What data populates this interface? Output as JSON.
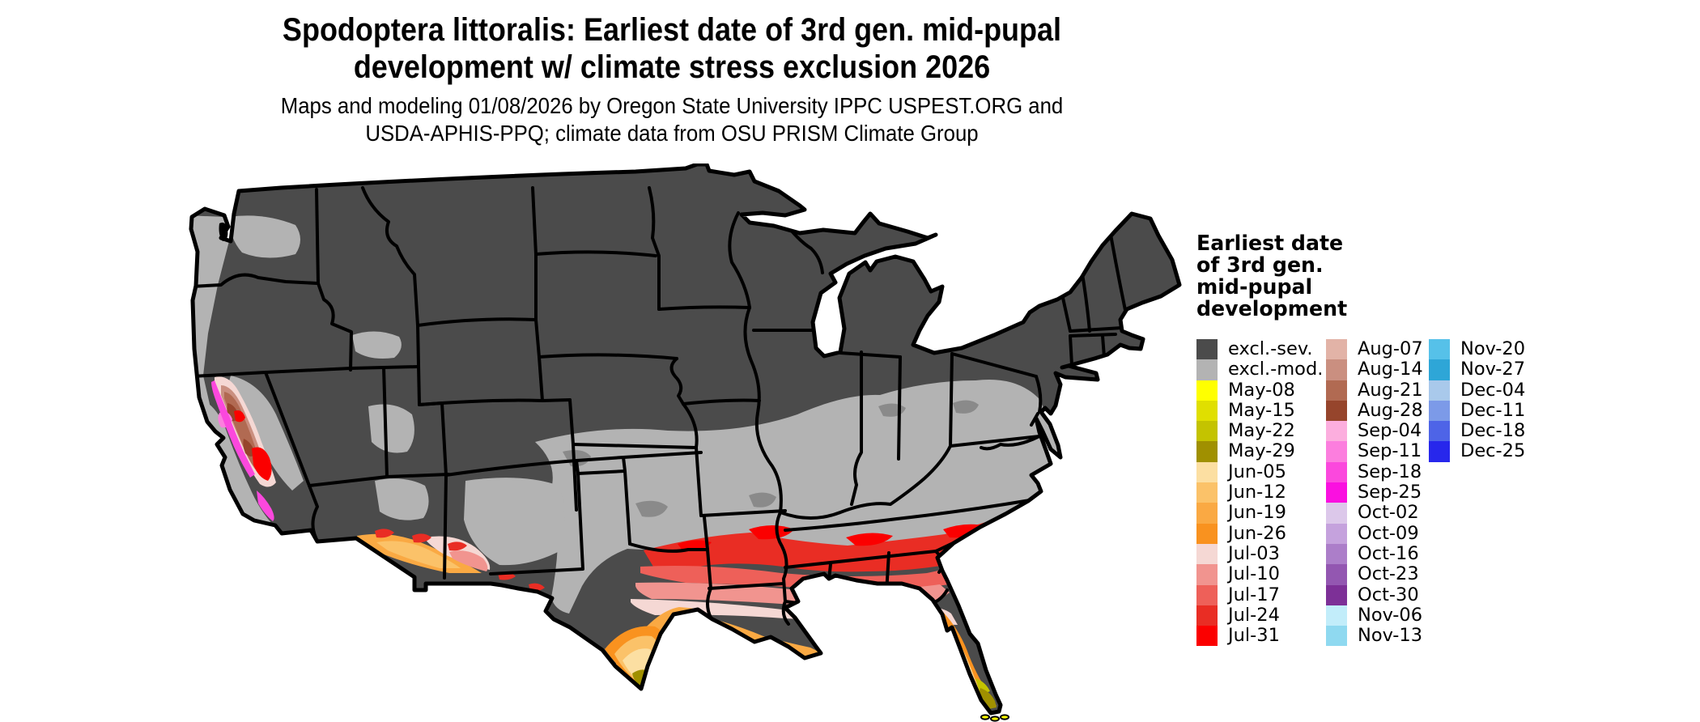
{
  "title": {
    "line1": "Spodoptera littoralis: Earliest date of 3rd gen. mid-pupal",
    "line2": "development w/ climate stress exclusion 2026"
  },
  "subtitle": {
    "line1": "Maps and modeling 01/08/2026 by Oregon State University IPPC USPEST.ORG and",
    "line2": "USDA-APHIS-PPQ; climate data from OSU PRISM Climate Group"
  },
  "legend": {
    "title_lines": [
      "Earliest date",
      "of 3rd gen.",
      "mid-pupal",
      "development"
    ],
    "columns": [
      {
        "entries": [
          {
            "label": "excl.-sev.",
            "color": "#4b4b4b"
          },
          {
            "label": "excl.-mod.",
            "color": "#b3b3b3"
          },
          {
            "label": "May-08",
            "color": "#ffff00"
          },
          {
            "label": "May-15",
            "color": "#e0df00"
          },
          {
            "label": "May-22",
            "color": "#c4c300"
          },
          {
            "label": "May-29",
            "color": "#a09000"
          },
          {
            "label": "Jun-05",
            "color": "#fcdfa2"
          },
          {
            "label": "Jun-12",
            "color": "#fbc269"
          },
          {
            "label": "Jun-19",
            "color": "#faa943"
          },
          {
            "label": "Jun-26",
            "color": "#f9921f"
          },
          {
            "label": "Jul-03",
            "color": "#f5d8d4"
          },
          {
            "label": "Jul-10",
            "color": "#f1948f"
          },
          {
            "label": "Jul-17",
            "color": "#ee6059"
          },
          {
            "label": "Jul-24",
            "color": "#e92d24"
          },
          {
            "label": "Jul-31",
            "color": "#fb0000"
          }
        ]
      },
      {
        "entries": [
          {
            "label": "Aug-07",
            "color": "#e2b3a7"
          },
          {
            "label": "Aug-14",
            "color": "#ca8f80"
          },
          {
            "label": "Aug-21",
            "color": "#b16a52"
          },
          {
            "label": "Aug-28",
            "color": "#96452c"
          },
          {
            "label": "Sep-04",
            "color": "#fcaede"
          },
          {
            "label": "Sep-11",
            "color": "#fc7ede"
          },
          {
            "label": "Sep-18",
            "color": "#fb48dd"
          },
          {
            "label": "Sep-25",
            "color": "#fa10e0"
          },
          {
            "label": "Oct-02",
            "color": "#dcc8ea"
          },
          {
            "label": "Oct-09",
            "color": "#c5a2dd"
          },
          {
            "label": "Oct-16",
            "color": "#ac7ec9"
          },
          {
            "label": "Oct-23",
            "color": "#9357b1"
          },
          {
            "label": "Oct-30",
            "color": "#7d3097"
          },
          {
            "label": "Nov-06",
            "color": "#c2edfa"
          },
          {
            "label": "Nov-13",
            "color": "#8fd9f0"
          }
        ]
      },
      {
        "entries": [
          {
            "label": "Nov-20",
            "color": "#56c1e9"
          },
          {
            "label": "Nov-27",
            "color": "#2ea6d7"
          },
          {
            "label": "Dec-04",
            "color": "#a9c9eb"
          },
          {
            "label": "Dec-11",
            "color": "#7c9ae8"
          },
          {
            "label": "Dec-18",
            "color": "#4e64e7"
          },
          {
            "label": "Dec-25",
            "color": "#2727ec"
          }
        ]
      }
    ]
  },
  "map": {
    "region": "Contiguous United States",
    "background": "#ffffff",
    "border_color": "#000000",
    "palette": {
      "excl_sev": "#4b4b4b",
      "excl_mod": "#b3b3b3",
      "blend_gray": "#8a8a8a",
      "may08": "#ffff00",
      "may22": "#c4c300",
      "may29": "#a09000",
      "jun05": "#fcdfa2",
      "jun12": "#fbc269",
      "jun19": "#faa943",
      "jun26": "#f9921f",
      "jul03": "#f5d8d4",
      "jul10": "#f1948f",
      "jul17": "#ee6059",
      "jul24": "#e92d24",
      "jul31": "#fb0000",
      "aug14": "#ca8f80",
      "aug21": "#b16a52",
      "aug28": "#96452c",
      "sep11": "#fc7ede",
      "sep18": "#fb48dd",
      "oct23": "#9357b1",
      "nov13": "#8fd9f0"
    }
  }
}
